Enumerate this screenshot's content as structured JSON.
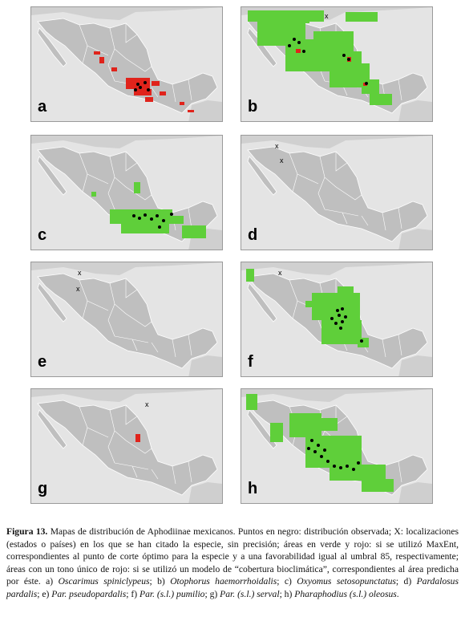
{
  "panels": [
    {
      "letter": "a",
      "markers": [
        "dot",
        "green-area",
        "red-area"
      ]
    },
    {
      "letter": "b",
      "markers": [
        "dot",
        "x",
        "green-area",
        "red-area"
      ]
    },
    {
      "letter": "c",
      "markers": [
        "dot",
        "green-area"
      ]
    },
    {
      "letter": "d",
      "markers": [
        "x"
      ]
    },
    {
      "letter": "e",
      "markers": [
        "x"
      ]
    },
    {
      "letter": "f",
      "markers": [
        "dot",
        "green-area"
      ]
    },
    {
      "letter": "g",
      "markers": [
        "x",
        "red-area"
      ]
    },
    {
      "letter": "h",
      "markers": [
        "dot",
        "green-area"
      ]
    }
  ],
  "x_mark": "x",
  "caption": {
    "label": "Figura 13.",
    "text1": " Mapas de distribución de Aphodiinae mexicanos. Puntos en negro: distribución observada; X: localizaciones (estados o países) en los que se han citado la especie, sin precisión; áreas en verde y rojo: si se utilizó MaxEnt, correspondientes al punto de corte óptimo para la especie y a una favorabilidad igual al umbral 85, respectivamente; áreas con un tono único de rojo: si se utilizó un modelo de “cobertura bioclimática”, correspondientes al área predicha por éste. a) ",
    "sp_a": "Oscarimus spiniclypeus",
    "sep_b": "; b) ",
    "sp_b": "Otophorus haemorrhoidalis",
    "sep_c": "; c) ",
    "sp_c": "Oxyomus setosopunctatus",
    "sep_d": "; d) ",
    "sp_d": "Pardalosus pardalis",
    "sep_e": "; e) ",
    "sp_e": "Par. pseudopardalis",
    "sep_f": "; f) ",
    "sp_f": "Par. (s.l.) pumilio",
    "sep_g": "; g) ",
    "sp_g": "Par. (s.l.) serval",
    "sep_h": "; h) ",
    "sp_h": "Pharaphodius (s.l.) oleosus",
    "end": "."
  },
  "colors": {
    "land": "#bfbfbf",
    "sea": "#e4e4e4",
    "green": "#5fcf3a",
    "red": "#e0231b",
    "dot": "#000000"
  }
}
